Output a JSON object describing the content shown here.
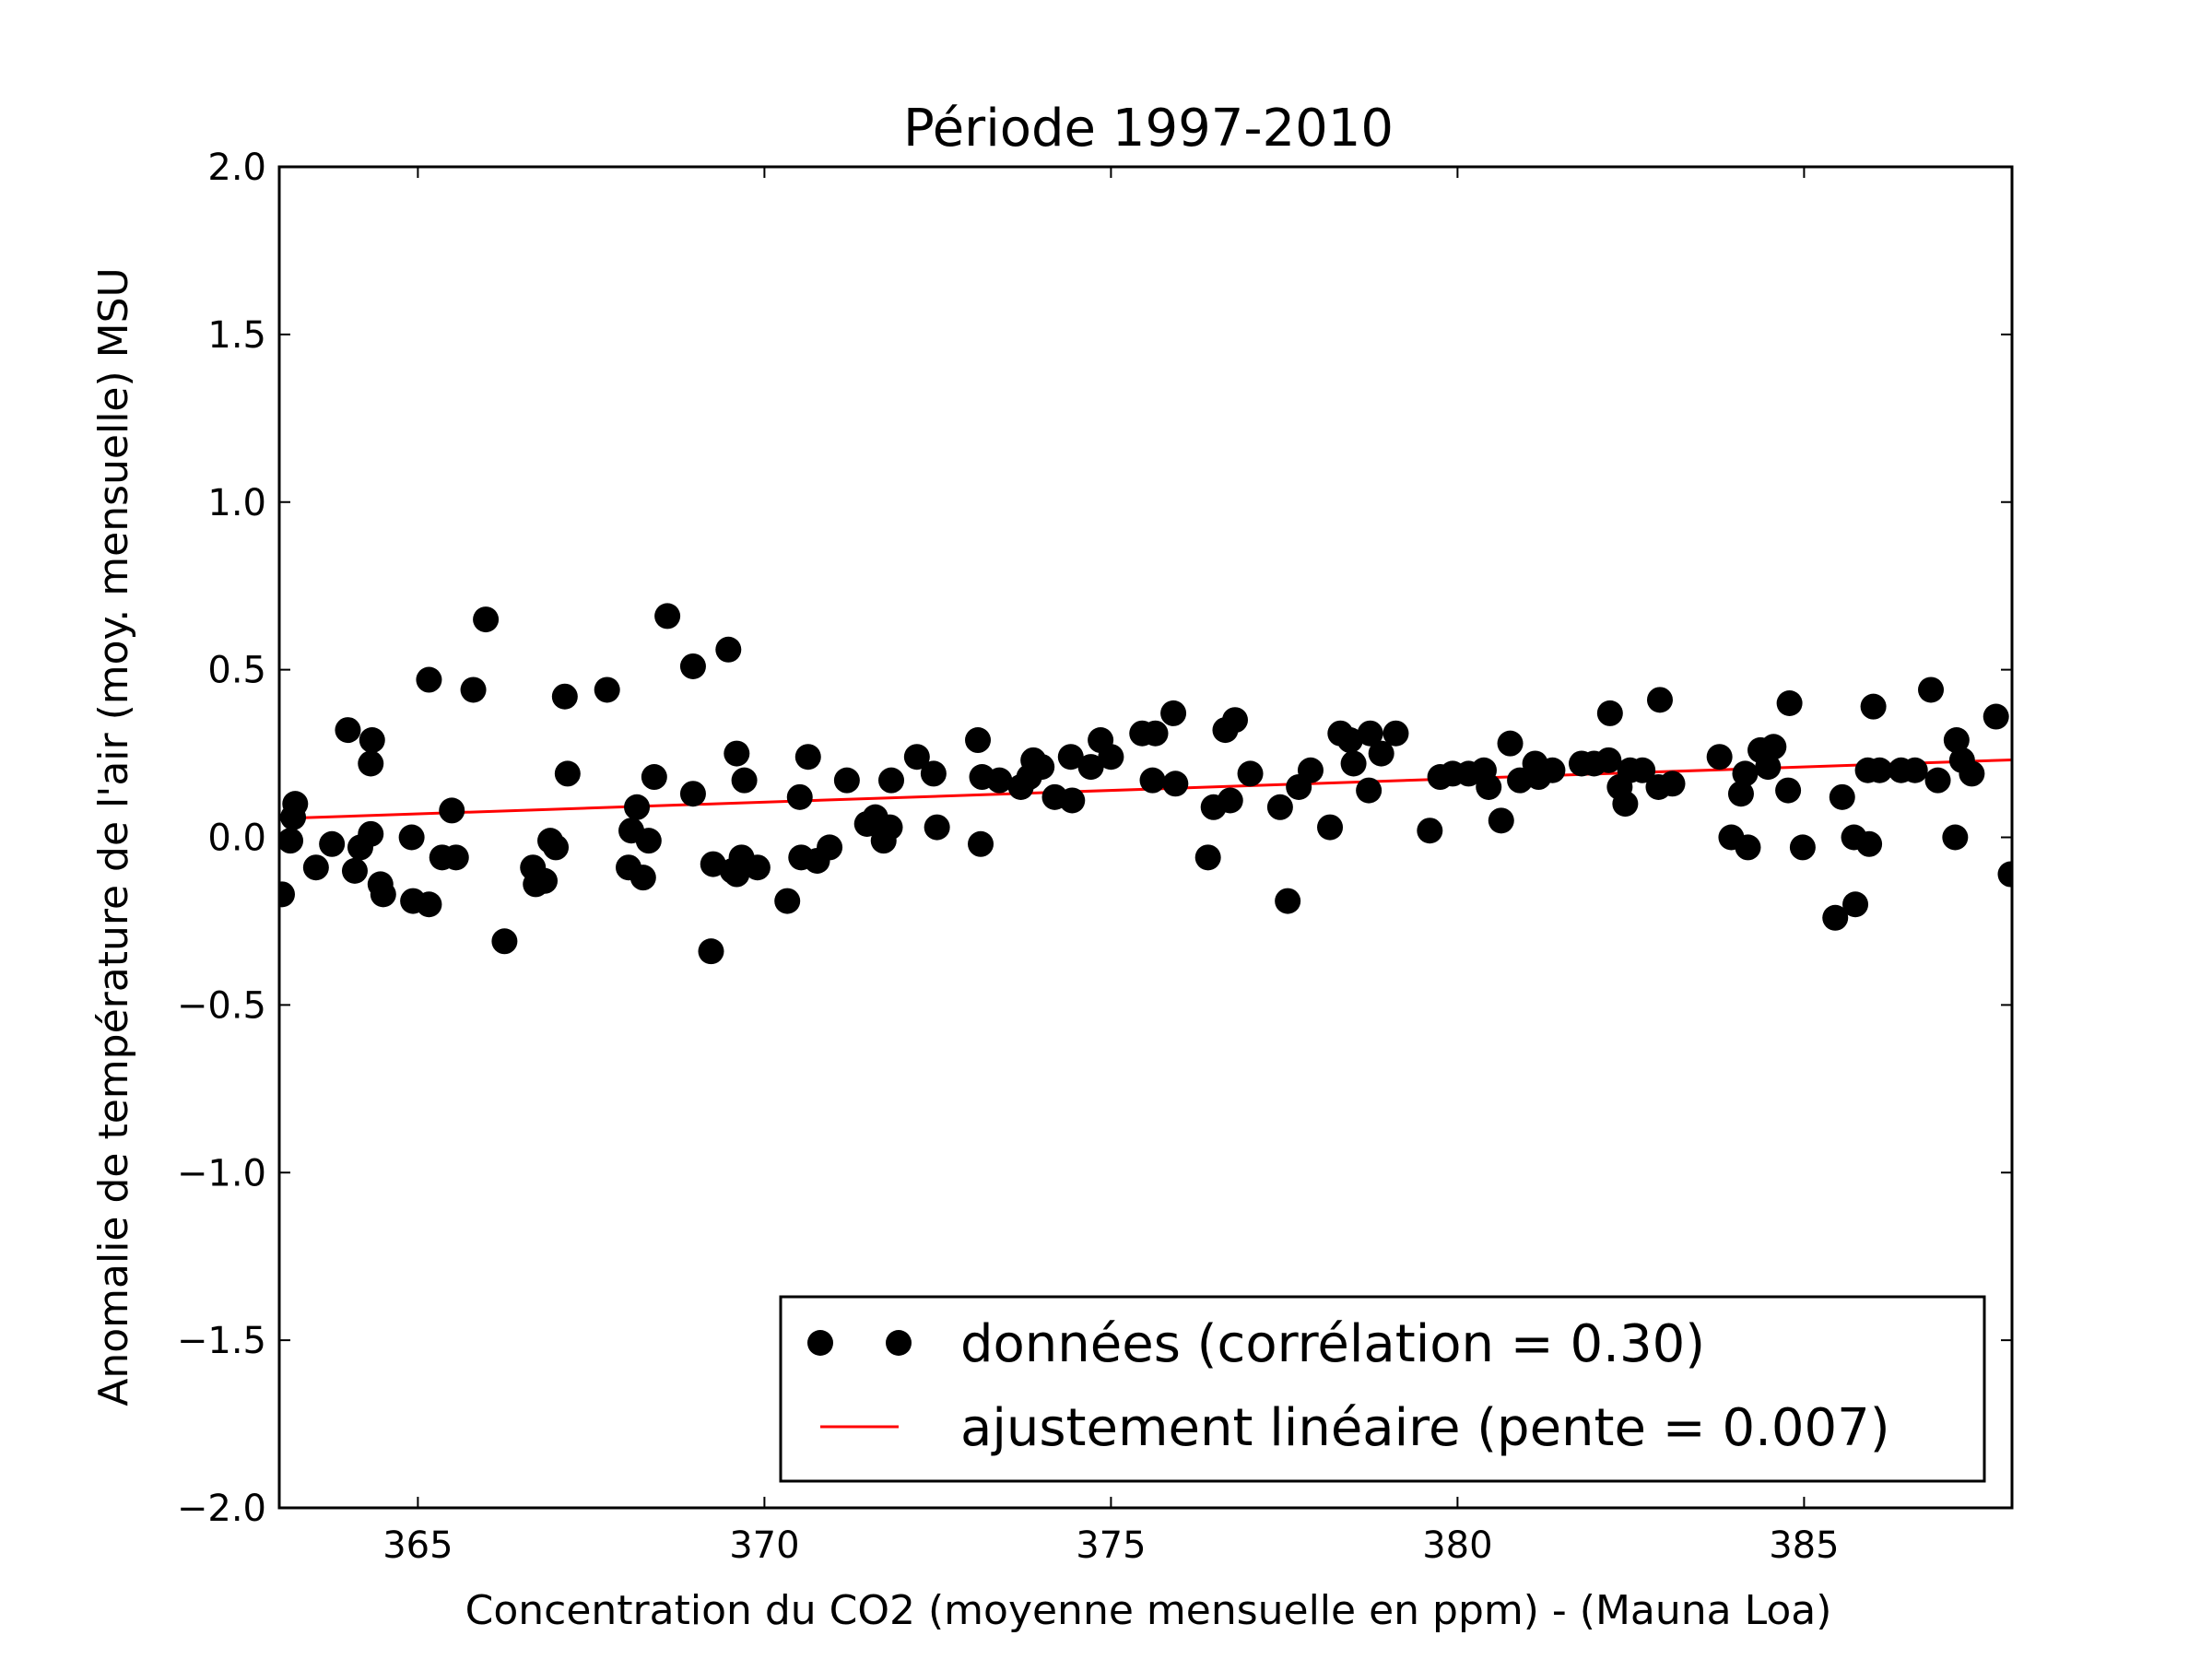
{
  "chart_data": {
    "type": "scatter",
    "title": "Période 1997-2010",
    "xlabel": "Concentration du CO2 (moyenne mensuelle en ppm) - (Mauna Loa)",
    "ylabel": "Anomalie de température de l'air (moy. mensuelle) MSU",
    "xlim": [
      363,
      388
    ],
    "ylim": [
      -2.0,
      2.0
    ],
    "xticks": [
      365,
      370,
      375,
      380,
      385
    ],
    "yticks": [
      -2.0,
      -1.5,
      -1.0,
      -0.5,
      0.0,
      0.5,
      1.0,
      1.5,
      2.0
    ],
    "ytick_labels": [
      "−2.0",
      "−1.5",
      "−1.0",
      "−0.5",
      "0.0",
      "0.5",
      "1.0",
      "1.5",
      "2.0"
    ],
    "grid": false,
    "legend_placement": "lower-right",
    "series": [
      {
        "name": "données (corrélation = 0.30)",
        "kind": "scatter",
        "color": "#000000",
        "points": [
          [
            363.04,
            -0.17
          ],
          [
            363.16,
            -0.01
          ],
          [
            363.2,
            0.06
          ],
          [
            363.23,
            0.1
          ],
          [
            363.53,
            -0.09
          ],
          [
            363.76,
            -0.02
          ],
          [
            363.99,
            0.32
          ],
          [
            364.09,
            -0.1
          ],
          [
            364.17,
            -0.03
          ],
          [
            364.32,
            0.22
          ],
          [
            364.34,
            0.29
          ],
          [
            364.32,
            0.01
          ],
          [
            364.46,
            -0.14
          ],
          [
            364.5,
            -0.17
          ],
          [
            364.91,
            0.0
          ],
          [
            364.93,
            -0.19
          ],
          [
            365.16,
            0.47
          ],
          [
            365.16,
            -0.2
          ],
          [
            365.35,
            -0.06
          ],
          [
            365.49,
            0.08
          ],
          [
            365.55,
            -0.06
          ],
          [
            365.8,
            0.44
          ],
          [
            365.98,
            0.65
          ],
          [
            366.25,
            -0.31
          ],
          [
            366.66,
            -0.09
          ],
          [
            366.7,
            -0.14
          ],
          [
            366.83,
            -0.13
          ],
          [
            366.91,
            -0.01
          ],
          [
            366.99,
            -0.03
          ],
          [
            367.12,
            0.42
          ],
          [
            367.16,
            0.19
          ],
          [
            367.73,
            0.44
          ],
          [
            368.04,
            -0.09
          ],
          [
            368.08,
            0.02
          ],
          [
            368.16,
            0.09
          ],
          [
            368.25,
            -0.12
          ],
          [
            368.33,
            -0.01
          ],
          [
            368.41,
            0.18
          ],
          [
            368.6,
            0.66
          ],
          [
            368.97,
            0.51
          ],
          [
            368.97,
            0.13
          ],
          [
            369.23,
            -0.34
          ],
          [
            369.26,
            -0.08
          ],
          [
            369.48,
            0.56
          ],
          [
            369.54,
            -0.1
          ],
          [
            369.6,
            0.25
          ],
          [
            369.6,
            -0.11
          ],
          [
            369.67,
            -0.06
          ],
          [
            369.71,
            0.17
          ],
          [
            369.9,
            -0.09
          ],
          [
            370.33,
            -0.19
          ],
          [
            370.51,
            0.12
          ],
          [
            370.53,
            -0.06
          ],
          [
            370.63,
            0.24
          ],
          [
            370.76,
            -0.07
          ],
          [
            370.94,
            -0.03
          ],
          [
            371.19,
            0.17
          ],
          [
            371.48,
            0.04
          ],
          [
            371.6,
            0.06
          ],
          [
            371.72,
            -0.01
          ],
          [
            371.81,
            0.03
          ],
          [
            371.83,
            0.17
          ],
          [
            372.2,
            0.24
          ],
          [
            372.44,
            0.19
          ],
          [
            372.49,
            0.03
          ],
          [
            373.08,
            0.29
          ],
          [
            373.12,
            -0.02
          ],
          [
            373.14,
            0.18
          ],
          [
            373.39,
            0.17
          ],
          [
            373.7,
            0.15
          ],
          [
            373.82,
            0.18
          ],
          [
            373.88,
            0.23
          ],
          [
            374.0,
            0.21
          ],
          [
            374.19,
            0.12
          ],
          [
            374.44,
            0.11
          ],
          [
            374.42,
            0.24
          ],
          [
            374.71,
            0.21
          ],
          [
            374.85,
            0.29
          ],
          [
            375.0,
            0.24
          ],
          [
            375.45,
            0.31
          ],
          [
            375.64,
            0.31
          ],
          [
            375.6,
            0.17
          ],
          [
            375.9,
            0.37
          ],
          [
            375.93,
            0.16
          ],
          [
            376.4,
            -0.06
          ],
          [
            376.48,
            0.09
          ],
          [
            376.65,
            0.32
          ],
          [
            376.72,
            0.11
          ],
          [
            376.79,
            0.35
          ],
          [
            377.01,
            0.19
          ],
          [
            377.44,
            0.09
          ],
          [
            377.55,
            -0.19
          ],
          [
            377.71,
            0.15
          ],
          [
            377.88,
            0.2
          ],
          [
            378.16,
            0.03
          ],
          [
            378.31,
            0.31
          ],
          [
            378.45,
            0.29
          ],
          [
            378.5,
            0.22
          ],
          [
            378.74,
            0.31
          ],
          [
            378.72,
            0.14
          ],
          [
            378.9,
            0.25
          ],
          [
            379.11,
            0.31
          ],
          [
            379.6,
            0.02
          ],
          [
            379.75,
            0.18
          ],
          [
            379.93,
            0.19
          ],
          [
            380.16,
            0.19
          ],
          [
            380.38,
            0.2
          ],
          [
            380.45,
            0.15
          ],
          [
            380.63,
            0.05
          ],
          [
            380.76,
            0.28
          ],
          [
            380.9,
            0.17
          ],
          [
            381.12,
            0.22
          ],
          [
            381.17,
            0.18
          ],
          [
            381.37,
            0.2
          ],
          [
            381.79,
            0.22
          ],
          [
            381.97,
            0.22
          ],
          [
            382.2,
            0.37
          ],
          [
            382.18,
            0.23
          ],
          [
            382.34,
            0.15
          ],
          [
            382.42,
            0.1
          ],
          [
            382.49,
            0.2
          ],
          [
            382.67,
            0.2
          ],
          [
            382.92,
            0.41
          ],
          [
            382.9,
            0.15
          ],
          [
            383.1,
            0.16
          ],
          [
            383.78,
            0.24
          ],
          [
            383.95,
            0.0
          ],
          [
            384.09,
            0.13
          ],
          [
            384.15,
            0.19
          ],
          [
            384.19,
            -0.03
          ],
          [
            384.37,
            0.26
          ],
          [
            384.48,
            0.21
          ],
          [
            384.56,
            0.27
          ],
          [
            384.77,
            0.14
          ],
          [
            384.79,
            0.4
          ],
          [
            384.98,
            -0.03
          ],
          [
            385.45,
            -0.24
          ],
          [
            385.55,
            0.12
          ],
          [
            385.72,
            0.0
          ],
          [
            385.74,
            -0.2
          ],
          [
            385.92,
            0.2
          ],
          [
            385.94,
            -0.02
          ],
          [
            386.0,
            0.39
          ],
          [
            386.09,
            0.2
          ],
          [
            386.4,
            0.2
          ],
          [
            386.6,
            0.2
          ],
          [
            386.83,
            0.44
          ],
          [
            386.93,
            0.17
          ],
          [
            387.18,
            0.0
          ],
          [
            387.2,
            0.29
          ],
          [
            387.28,
            0.23
          ],
          [
            387.42,
            0.19
          ],
          [
            387.77,
            0.36
          ],
          [
            387.98,
            -0.11
          ]
        ]
      },
      {
        "name": "ajustement linéaire (pente = 0.007)",
        "kind": "line",
        "color": "#ff0000",
        "x": [
          363,
          388
        ],
        "y": [
          0.056,
          0.231
        ]
      }
    ]
  }
}
